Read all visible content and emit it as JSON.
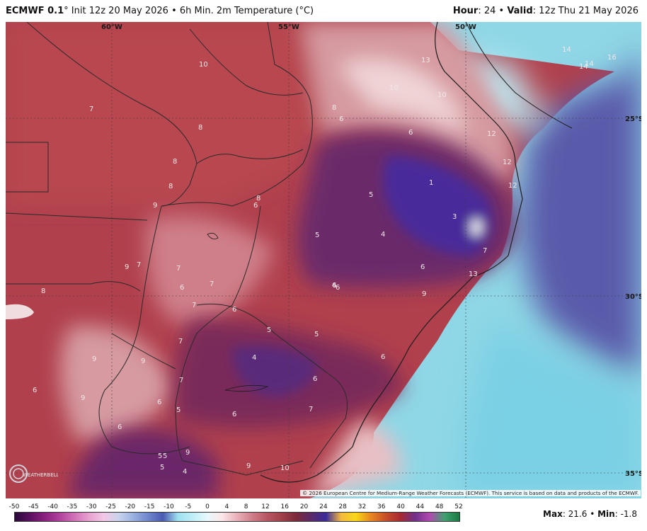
{
  "header": {
    "model": "ECMWF 0.1",
    "degree": "°",
    "init": " Init 12z 20 May 2026",
    "bullet": " • ",
    "product": "6h Min. 2m Temperature (°C)",
    "hour_label": "Hour",
    "hour_value": ": 24",
    "valid_label": "Valid",
    "valid_value": ": 12z Thu 21 May 2026"
  },
  "map": {
    "longitude_labels": [
      "60°W",
      "55°W",
      "50°W"
    ],
    "latitude_labels": [
      "25°S",
      "30°S",
      "35°S"
    ],
    "contour_labels": [
      "10",
      "7",
      "8",
      "8",
      "8",
      "9",
      "8",
      "6",
      "8",
      "9",
      "7",
      "7",
      "7",
      "6",
      "7",
      "7",
      "9",
      "9",
      "9",
      "6",
      "7",
      "5",
      "6",
      "5",
      "6",
      "5",
      "4",
      "6",
      "4",
      "6",
      "5",
      "5",
      "5",
      "4",
      "9",
      "9",
      "10",
      "6",
      "6",
      "7",
      "10",
      "13",
      "10",
      "8",
      "6",
      "6",
      "1",
      "5",
      "5",
      "4",
      "3",
      "7",
      "6",
      "6",
      "13",
      "9",
      "12",
      "12",
      "12",
      "14",
      "14",
      "14",
      "16",
      "6"
    ],
    "logo_text": "WEATHERBELL",
    "credit": "© 2026 European Centre for Medium-Range Weather Forecasts (ECMWF). This service is based on data and products of the ECMWF."
  },
  "legend": {
    "ticks": [
      "-50",
      "-45",
      "-40",
      "-35",
      "-30",
      "-25",
      "-20",
      "-15",
      "-10",
      "-5",
      "0",
      "4",
      "8",
      "12",
      "16",
      "20",
      "24",
      "28",
      "32",
      "36",
      "40",
      "44",
      "48",
      "52"
    ],
    "colors": [
      "#2a0a3a",
      "#5a1060",
      "#8a2080",
      "#b0409c",
      "#d070b8",
      "#e8a0d0",
      "#f2c8e6",
      "#c8d4ee",
      "#9ab0e0",
      "#6f86cc",
      "#4a5ab0",
      "#9ee0f0",
      "#bfeef8",
      "#e8f8fc",
      "#fbe6e8",
      "#e8b0b8",
      "#cf7f8a",
      "#b85864",
      "#a04048",
      "#7a2a3a",
      "#5a2a6a",
      "#3a2a9a",
      "#f4b840",
      "#f8d818",
      "#e88820",
      "#c85028",
      "#a82a30",
      "#70308a",
      "#b04ab0",
      "#40a070",
      "#1a7a40"
    ]
  },
  "stats": {
    "max_label": "Max",
    "max_value": ": 21.6",
    "bullet": " • ",
    "min_label": "Min",
    "min_value": ": -1.8"
  }
}
